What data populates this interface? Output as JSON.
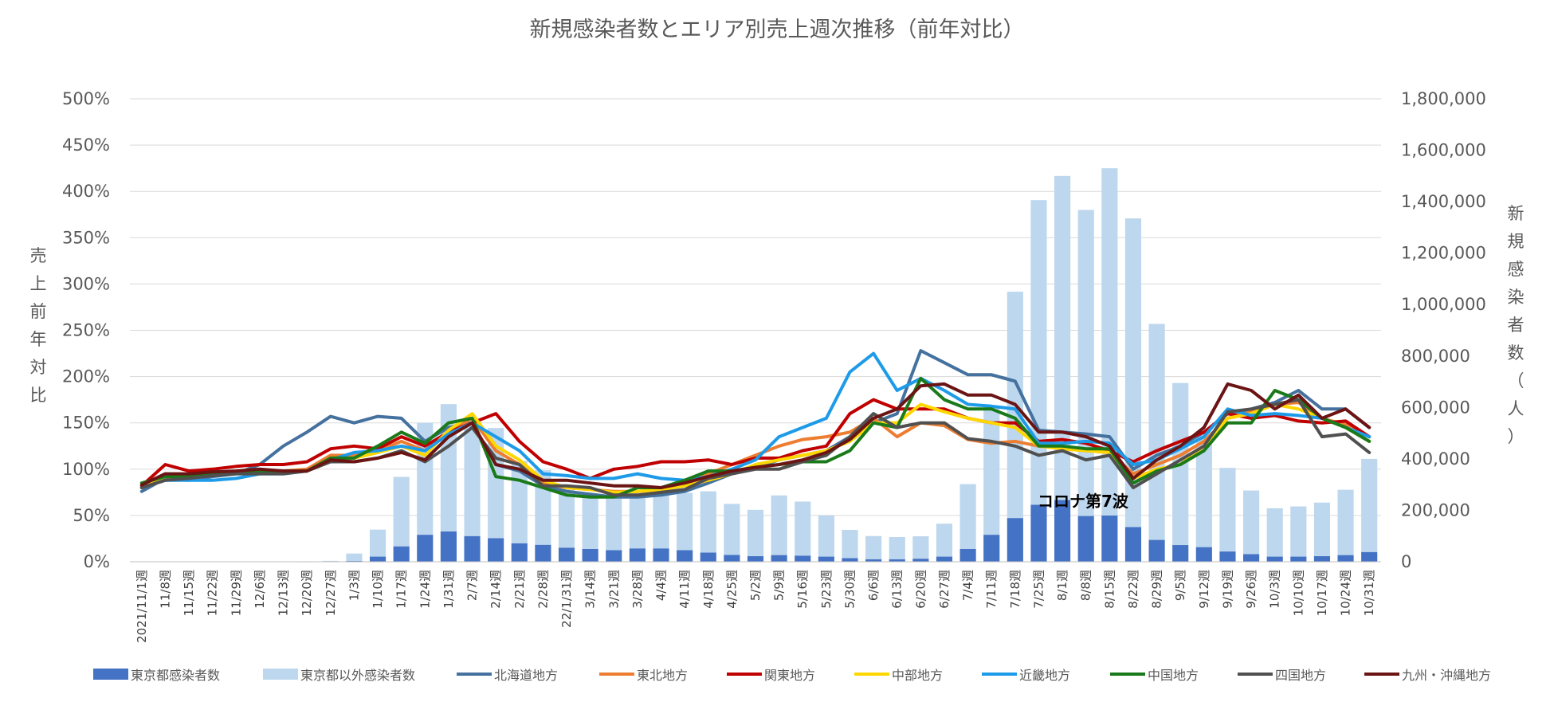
{
  "chart_data": {
    "type": "bar+line",
    "title": "新規感染者数とエリア別売上週次推移（前年対比）",
    "ylabel_left": "売上前年対比",
    "ylabel_right": "新規感染者数（人）",
    "y_left_ticks": [
      "500%",
      "450%",
      "400%",
      "350%",
      "300%",
      "250%",
      "200%",
      "150%",
      "100%",
      "50%",
      "0%"
    ],
    "y_right_ticks": [
      "1,800,000",
      "1,600,000",
      "1,400,000",
      "1,200,000",
      "1,000,000",
      "800,000",
      "600,000",
      "400,000",
      "200,000",
      "0"
    ],
    "ylim_left": [
      0,
      5
    ],
    "ylim_right": [
      0,
      1800000
    ],
    "annotation": "コロナ第7波",
    "categories": [
      "2021/11/1週",
      "11/8週",
      "11/15週",
      "11/22週",
      "11/29週",
      "12/6週",
      "12/13週",
      "12/20週",
      "12/27週",
      "1/3週",
      "1/10週",
      "1/17週",
      "1/24週",
      "1/31週",
      "2/7週",
      "2/14週",
      "2/21週",
      "2/28週",
      "22/1/31週",
      "3/14週",
      "3/21週",
      "3/28週",
      "4/4週",
      "4/11週",
      "4/18週",
      "4/25週",
      "5/2週",
      "5/9週",
      "5/16週",
      "5/23週",
      "5/30週",
      "6/6週",
      "6/13週",
      "6/20週",
      "6/27週",
      "7/4週",
      "7/11週",
      "7/18週",
      "7/25週",
      "8/1週",
      "8/8週",
      "8/15週",
      "8/22週",
      "8/29週",
      "9/5週",
      "9/12週",
      "9/19週",
      "9/26週",
      "10/3週",
      "10/10週",
      "10/17週",
      "10/24週",
      "10/31週"
    ],
    "bar_series": [
      {
        "name": "東京都感染者数",
        "color": "#4472C4",
        "values": [
          200,
          200,
          200,
          200,
          200,
          200,
          200,
          300,
          600,
          3000,
          20000,
          60000,
          105000,
          118000,
          100000,
          92000,
          72000,
          66000,
          55000,
          50000,
          45000,
          52000,
          52000,
          45000,
          36000,
          27000,
          22000,
          26000,
          24000,
          20000,
          14000,
          10000,
          10000,
          12000,
          20000,
          50000,
          105000,
          170000,
          222000,
          240000,
          178000,
          180000,
          135000,
          85000,
          65000,
          57000,
          40000,
          30000,
          20000,
          20000,
          22000,
          26000,
          38000
        ]
      },
      {
        "name": "東京都以外感染者数",
        "color": "#BDD7EE",
        "values": [
          800,
          900,
          900,
          900,
          1000,
          1000,
          1100,
          1500,
          2900,
          29000,
          105000,
          270000,
          435000,
          495000,
          445000,
          428000,
          320000,
          290000,
          235000,
          210000,
          215000,
          220000,
          220000,
          223000,
          238000,
          198000,
          180000,
          232000,
          210000,
          160000,
          110000,
          90000,
          86000,
          87000,
          128000,
          252000,
          502000,
          880000,
          1184000,
          1260000,
          1190000,
          1350000,
          1200000,
          840000,
          630000,
          450000,
          325000,
          247000,
          188000,
          195000,
          208000,
          254000,
          362000
        ]
      }
    ],
    "line_series": [
      {
        "name": "北海道地方",
        "color": "#44719E",
        "values": [
          0.76,
          0.9,
          0.88,
          0.92,
          0.95,
          1.05,
          1.25,
          1.4,
          1.57,
          1.5,
          1.57,
          1.55,
          1.3,
          1.45,
          1.5,
          1.05,
          0.98,
          0.82,
          0.76,
          0.73,
          0.7,
          0.7,
          0.72,
          0.76,
          0.85,
          0.95,
          1.02,
          1.1,
          1.15,
          1.2,
          1.35,
          1.5,
          1.6,
          2.28,
          2.15,
          2.02,
          2.02,
          1.95,
          1.42,
          1.4,
          1.38,
          1.35,
          1.0,
          1.15,
          1.25,
          1.4,
          1.6,
          1.65,
          1.72,
          1.85,
          1.65,
          1.65,
          1.45
        ]
      },
      {
        "name": "東北地方",
        "color": "#ED7D31",
        "values": [
          0.8,
          0.88,
          0.92,
          0.95,
          0.97,
          0.98,
          0.98,
          1.0,
          1.15,
          1.15,
          1.2,
          1.3,
          1.2,
          1.4,
          1.55,
          1.2,
          1.05,
          0.85,
          0.8,
          0.78,
          0.76,
          0.76,
          0.78,
          0.85,
          0.95,
          1.05,
          1.15,
          1.25,
          1.32,
          1.35,
          1.4,
          1.55,
          1.35,
          1.5,
          1.47,
          1.32,
          1.28,
          1.3,
          1.25,
          1.22,
          1.2,
          1.18,
          0.95,
          1.05,
          1.15,
          1.3,
          1.55,
          1.62,
          1.7,
          1.72,
          1.55,
          1.48,
          1.35
        ]
      },
      {
        "name": "関東地方",
        "color": "#C00000",
        "values": [
          0.82,
          1.05,
          0.98,
          1.0,
          1.03,
          1.05,
          1.05,
          1.08,
          1.22,
          1.25,
          1.22,
          1.35,
          1.25,
          1.4,
          1.5,
          1.6,
          1.3,
          1.08,
          1.0,
          0.9,
          1.0,
          1.03,
          1.08,
          1.08,
          1.1,
          1.05,
          1.12,
          1.12,
          1.2,
          1.25,
          1.6,
          1.75,
          1.65,
          1.65,
          1.65,
          1.55,
          1.5,
          1.5,
          1.3,
          1.32,
          1.28,
          1.2,
          1.08,
          1.2,
          1.3,
          1.4,
          1.6,
          1.55,
          1.58,
          1.52,
          1.5,
          1.52,
          1.35
        ]
      },
      {
        "name": "中部地方",
        "color": "#FFD700",
        "values": [
          0.8,
          0.92,
          0.93,
          0.95,
          0.97,
          0.98,
          0.98,
          0.98,
          1.12,
          1.12,
          1.18,
          1.25,
          1.15,
          1.42,
          1.6,
          1.25,
          1.1,
          0.88,
          0.8,
          0.78,
          0.75,
          0.76,
          0.78,
          0.82,
          0.88,
          0.95,
          1.05,
          1.1,
          1.15,
          1.2,
          1.3,
          1.5,
          1.5,
          1.7,
          1.62,
          1.55,
          1.5,
          1.45,
          1.25,
          1.22,
          1.2,
          1.18,
          0.9,
          1.0,
          1.05,
          1.25,
          1.55,
          1.6,
          1.7,
          1.65,
          1.55,
          1.45,
          1.3
        ]
      },
      {
        "name": "近畿地方",
        "color": "#1E9BE8",
        "values": [
          0.8,
          0.88,
          0.88,
          0.88,
          0.9,
          0.95,
          0.95,
          0.98,
          1.1,
          1.18,
          1.2,
          1.25,
          1.2,
          1.38,
          1.5,
          1.35,
          1.2,
          0.95,
          0.93,
          0.9,
          0.9,
          0.95,
          0.9,
          0.88,
          0.92,
          1.0,
          1.1,
          1.35,
          1.45,
          1.55,
          2.05,
          2.25,
          1.85,
          1.98,
          1.85,
          1.7,
          1.68,
          1.65,
          1.28,
          1.28,
          1.3,
          1.28,
          1.05,
          1.1,
          1.22,
          1.35,
          1.65,
          1.58,
          1.6,
          1.58,
          1.55,
          1.45,
          1.35
        ]
      },
      {
        "name": "中国地方",
        "color": "#1A7A1A",
        "values": [
          0.85,
          0.92,
          0.92,
          0.95,
          0.97,
          0.98,
          0.98,
          0.98,
          1.12,
          1.12,
          1.25,
          1.4,
          1.28,
          1.5,
          1.55,
          0.92,
          0.88,
          0.8,
          0.72,
          0.7,
          0.7,
          0.8,
          0.8,
          0.88,
          0.98,
          0.98,
          1.02,
          1.05,
          1.08,
          1.08,
          1.2,
          1.5,
          1.45,
          1.98,
          1.75,
          1.65,
          1.65,
          1.55,
          1.25,
          1.25,
          1.22,
          1.22,
          0.85,
          0.98,
          1.05,
          1.2,
          1.5,
          1.5,
          1.85,
          1.75,
          1.55,
          1.45,
          1.3
        ]
      },
      {
        "name": "四国地方",
        "color": "#505050",
        "values": [
          0.8,
          0.88,
          0.9,
          0.93,
          0.95,
          0.95,
          0.95,
          0.98,
          1.08,
          1.08,
          1.12,
          1.2,
          1.08,
          1.25,
          1.45,
          1.12,
          1.05,
          0.82,
          0.82,
          0.8,
          0.72,
          0.72,
          0.75,
          0.78,
          0.9,
          0.95,
          1.0,
          1.0,
          1.08,
          1.15,
          1.35,
          1.6,
          1.45,
          1.5,
          1.5,
          1.33,
          1.3,
          1.25,
          1.15,
          1.2,
          1.1,
          1.15,
          0.8,
          0.95,
          1.1,
          1.25,
          1.62,
          1.65,
          1.7,
          1.75,
          1.35,
          1.38,
          1.18
        ]
      },
      {
        "name": "九州・沖縄地方",
        "color": "#6B1414",
        "values": [
          0.83,
          0.95,
          0.95,
          0.97,
          0.98,
          1.0,
          0.98,
          0.98,
          1.1,
          1.08,
          1.12,
          1.18,
          1.1,
          1.35,
          1.5,
          1.05,
          1.0,
          0.88,
          0.88,
          0.85,
          0.82,
          0.82,
          0.8,
          0.85,
          0.92,
          0.98,
          1.02,
          1.05,
          1.1,
          1.18,
          1.32,
          1.55,
          1.65,
          1.9,
          1.92,
          1.8,
          1.8,
          1.7,
          1.4,
          1.4,
          1.35,
          1.25,
          0.9,
          1.1,
          1.25,
          1.45,
          1.92,
          1.85,
          1.65,
          1.8,
          1.55,
          1.65,
          1.45
        ]
      }
    ],
    "legend_placement": "bottom",
    "grid": true
  }
}
